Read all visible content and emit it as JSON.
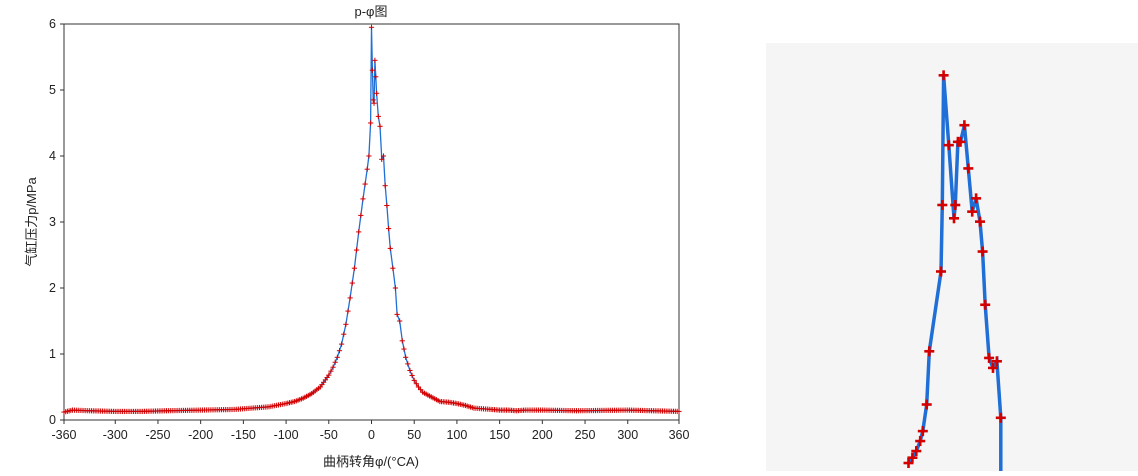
{
  "colors": {
    "line": "#1f6fd6",
    "marker": "#d40000",
    "axis": "#333333",
    "panel_bg": "#f5f5f5"
  },
  "chart_data": [
    {
      "type": "line",
      "title": "p-φ图",
      "xlabel": "曲柄转角φ/(°CA)",
      "ylabel": "气缸压力p/MPa",
      "xlim": [
        -360,
        360
      ],
      "ylim": [
        0,
        6
      ],
      "xticks": [
        -360,
        -300,
        -250,
        -200,
        -150,
        -100,
        -50,
        0,
        50,
        100,
        150,
        200,
        250,
        300,
        360
      ],
      "yticks": [
        0,
        1,
        2,
        3,
        4,
        5,
        6
      ],
      "grid": false,
      "marker": "+",
      "series": [
        {
          "x": [
            -360,
            -350,
            -330,
            -300,
            -270,
            -240,
            -200,
            -160,
            -140,
            -120,
            -100,
            -90,
            -80,
            -70,
            -60,
            -50,
            -45,
            -40,
            -35,
            -30,
            -25,
            -20,
            -15,
            -10,
            -5,
            -3,
            -1,
            0,
            1,
            2,
            3,
            4,
            5,
            6,
            8,
            10,
            12,
            14,
            16,
            18,
            20,
            22,
            25,
            28,
            30,
            33,
            36,
            40,
            45,
            50,
            55,
            60,
            70,
            80,
            90,
            100,
            110,
            120,
            140,
            150,
            160,
            170,
            180,
            200,
            240,
            300,
            330,
            360
          ],
          "y": [
            0.12,
            0.15,
            0.14,
            0.13,
            0.13,
            0.14,
            0.15,
            0.16,
            0.18,
            0.2,
            0.25,
            0.28,
            0.33,
            0.4,
            0.5,
            0.68,
            0.8,
            0.95,
            1.15,
            1.45,
            1.85,
            2.3,
            2.85,
            3.35,
            3.8,
            4.0,
            4.5,
            5.95,
            5.3,
            4.85,
            4.8,
            5.45,
            5.2,
            4.95,
            4.6,
            4.45,
            3.95,
            4.0,
            3.55,
            3.25,
            2.9,
            2.6,
            2.3,
            2.0,
            1.6,
            1.5,
            1.2,
            0.95,
            0.75,
            0.6,
            0.5,
            0.42,
            0.35,
            0.28,
            0.27,
            0.25,
            0.22,
            0.18,
            0.16,
            0.15,
            0.15,
            0.14,
            0.15,
            0.15,
            0.14,
            0.15,
            0.14,
            0.13
          ]
        }
      ]
    },
    {
      "type": "line",
      "title": "",
      "xlabel": "",
      "ylabel": "",
      "grid": false,
      "marker": "+",
      "series": [
        {
          "x": [
            -1.25,
            -1.1,
            -0.95,
            -0.8,
            -0.7,
            -0.55,
            -0.45,
            0,
            0.05,
            0.1,
            0.3,
            0.5,
            0.55,
            0.65,
            0.75,
            0.9,
            1.05,
            1.2,
            1.35,
            1.5,
            1.6,
            1.7,
            1.85,
            2.0,
            2.15,
            2.3
          ],
          "y": [
            0.12,
            0.2,
            0.3,
            0.45,
            0.6,
            1.0,
            1.8,
            3.0,
            4.0,
            5.95,
            4.9,
            3.8,
            4.0,
            4.95,
            4.95,
            5.2,
            4.55,
            3.9,
            4.1,
            3.75,
            3.3,
            2.5,
            1.7,
            1.55,
            1.65,
            0.8
          ]
        }
      ]
    }
  ]
}
